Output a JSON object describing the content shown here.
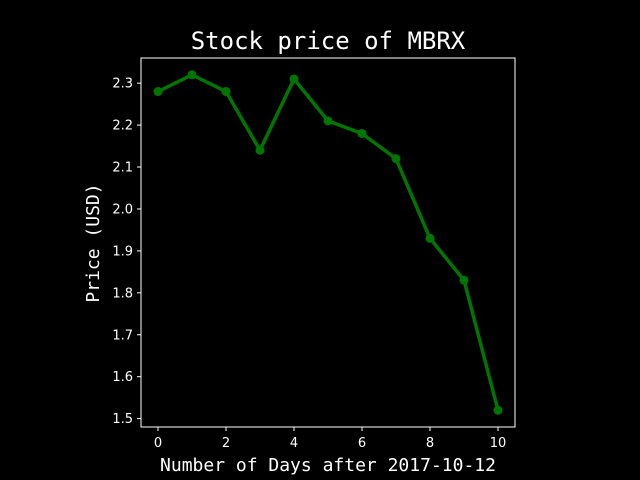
{
  "chart_data": {
    "type": "line",
    "title": "Stock price of MBRX",
    "xlabel": "Number of Days after 2017-10-12",
    "ylabel": "Price (USD)",
    "x": [
      0,
      1,
      2,
      3,
      4,
      5,
      6,
      7,
      8,
      9,
      10
    ],
    "series": [
      {
        "values": [
          2.28,
          2.32,
          2.28,
          2.14,
          2.31,
          2.21,
          2.18,
          2.12,
          1.93,
          1.83,
          1.52
        ],
        "color": "#007500"
      }
    ],
    "xlim": [
      -0.5,
      10.5
    ],
    "ylim": [
      1.48,
      2.36
    ],
    "xticks": [
      0,
      2,
      4,
      6,
      8,
      10
    ],
    "xtick_labels": [
      "0",
      "2",
      "4",
      "6",
      "8",
      "10"
    ],
    "yticks": [
      1.5,
      1.6,
      1.7,
      1.8,
      1.9,
      2.0,
      2.1,
      2.2,
      2.3
    ],
    "ytick_labels": [
      "1.5",
      "1.6",
      "1.7",
      "1.8",
      "1.9",
      "2.0",
      "2.1",
      "2.2",
      "2.3"
    ],
    "grid": false,
    "background": "#000000",
    "foreground": "#ffffff"
  }
}
